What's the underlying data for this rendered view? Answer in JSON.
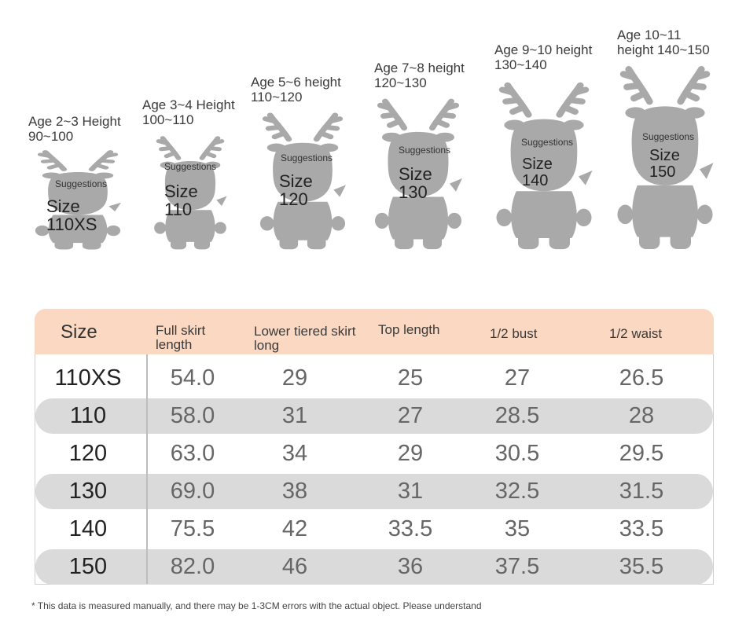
{
  "size_guide": [
    {
      "age": "Age 2~3 Height",
      "height": "90~100",
      "suggest": "Suggestions",
      "size_word": "Size",
      "size": "110XS"
    },
    {
      "age": "Age 3~4 Height",
      "height": "100~110",
      "suggest": "Suggestions",
      "size_word": "Size",
      "size": "110"
    },
    {
      "age": "Age 5~6 height",
      "height": "110~120",
      "suggest": "Suggestions",
      "size_word": "Size",
      "size": "120"
    },
    {
      "age": "Age 7~8 height",
      "height": "120~130",
      "suggest": "Suggestions",
      "size_word": "Size",
      "size": "130"
    },
    {
      "age": "Age 9~10 height",
      "height": "130~140",
      "suggest": "Suggestions",
      "size_word": "Size",
      "size": "140"
    },
    {
      "age": "Age 10~11",
      "height": "height 140~150",
      "suggest": "Suggestions",
      "size_word": "Size",
      "size": "150"
    }
  ],
  "table": {
    "headers": {
      "size": "Size",
      "full_skirt": [
        "Full skirt",
        "length"
      ],
      "lower_skirt": [
        "Lower tiered skirt",
        "long"
      ],
      "top": "Top length",
      "bust": "1/2 bust",
      "waist": "1/2 waist"
    },
    "rows": [
      [
        "110XS",
        "54.0",
        "29",
        "25",
        "27",
        "26.5"
      ],
      [
        "110",
        "58.0",
        "31",
        "27",
        "28.5",
        "28"
      ],
      [
        "120",
        "63.0",
        "34",
        "29",
        "30.5",
        "29.5"
      ],
      [
        "130",
        "69.0",
        "38",
        "31",
        "32.5",
        "31.5"
      ],
      [
        "140",
        "75.5",
        "42",
        "33.5",
        "35",
        "33.5"
      ],
      [
        "150",
        "82.0",
        "46",
        "36",
        "37.5",
        "35.5"
      ]
    ]
  },
  "note": "* This data is measured manually, and there may be 1-3CM errors with the actual object. Please understand",
  "colors": {
    "header_bg": "#fbd8c2",
    "row_shade": "#dadada",
    "reindeer": "#a9a9a9"
  },
  "icon": "reindeer-silhouette-icon"
}
